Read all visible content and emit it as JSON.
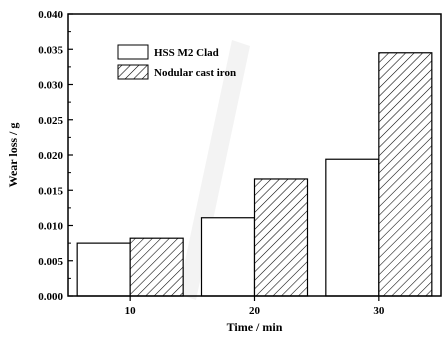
{
  "chart_data": {
    "type": "bar",
    "categories": [
      "10",
      "20",
      "30"
    ],
    "series": [
      {
        "name": "HSS M2 Clad",
        "values": [
          0.0075,
          0.0111,
          0.0194
        ],
        "fill": "white"
      },
      {
        "name": "Nodular cast iron",
        "values": [
          0.0082,
          0.0166,
          0.0345
        ],
        "fill": "hatch"
      }
    ],
    "xlabel": "Time / min",
    "ylabel": "Wear loss / g",
    "ylim": [
      0,
      0.04
    ],
    "yticks": [
      "0.000",
      "0.005",
      "0.010",
      "0.015",
      "0.020",
      "0.025",
      "0.030",
      "0.035",
      "0.040"
    ],
    "legend_position": "top-left",
    "grid": false
  },
  "colors": {
    "axis": "#000000",
    "watermark": "#e6e6e6"
  }
}
